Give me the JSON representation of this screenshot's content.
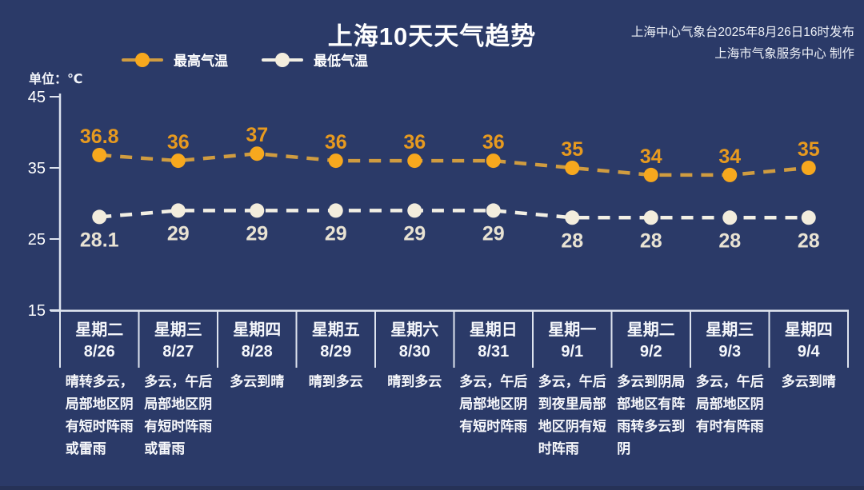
{
  "page": {
    "title": "上海10天天气趋势",
    "source_line1": "上海中心气象台2025年8月26日16时发布",
    "source_line2": "上海市气象服务中心 制作",
    "unit_label": "单位：℃"
  },
  "colors": {
    "background": "#2b3a68",
    "axis": "#dde3ee",
    "text": "#ffffff",
    "high_marker": "#f7a81e",
    "high_line": "#d09c40",
    "high_label": "#e79a1f",
    "low_marker": "#f3eddd",
    "low_line": "#f2efe4",
    "low_label": "#e9e3d3"
  },
  "chart_data": {
    "type": "line",
    "title": "上海10天天气趋势",
    "unit": "℃",
    "ylim": [
      15,
      45
    ],
    "yticks": [
      45,
      35,
      25,
      15
    ],
    "grid": false,
    "legend_position": "top-left",
    "categories": [
      {
        "weekday": "星期二",
        "date": "8/26"
      },
      {
        "weekday": "星期三",
        "date": "8/27"
      },
      {
        "weekday": "星期四",
        "date": "8/28"
      },
      {
        "weekday": "星期五",
        "date": "8/29"
      },
      {
        "weekday": "星期六",
        "date": "8/30"
      },
      {
        "weekday": "星期日",
        "date": "8/31"
      },
      {
        "weekday": "星期一",
        "date": "9/1"
      },
      {
        "weekday": "星期二",
        "date": "9/2"
      },
      {
        "weekday": "星期三",
        "date": "9/3"
      },
      {
        "weekday": "星期四",
        "date": "9/4"
      }
    ],
    "series": [
      {
        "name": "最高气温",
        "values": [
          36.8,
          36,
          37,
          36,
          36,
          36,
          35,
          34,
          34,
          35
        ]
      },
      {
        "name": "最低气温",
        "values": [
          28.1,
          29,
          29,
          29,
          29,
          29,
          28,
          28,
          28,
          28
        ]
      }
    ],
    "descriptions": [
      [
        "晴转多云，",
        "局部地区阴",
        "有短时阵雨",
        "或雷雨"
      ],
      [
        "多云，午后",
        "局部地区阴",
        "有短时阵雨",
        "或雷雨"
      ],
      [
        "多云到晴"
      ],
      [
        "晴到多云"
      ],
      [
        "晴到多云"
      ],
      [
        "多云，午后",
        "局部地区阴",
        "有短时阵雨"
      ],
      [
        "多云，午后",
        "到夜里局部",
        "地区阴有短",
        "时阵雨"
      ],
      [
        "多云到阴局",
        "部地区有阵",
        "雨转多云到",
        "阴"
      ],
      [
        "多云，午后",
        "局部地区阴",
        "有时有阵雨"
      ],
      [
        "多云到晴"
      ]
    ]
  }
}
